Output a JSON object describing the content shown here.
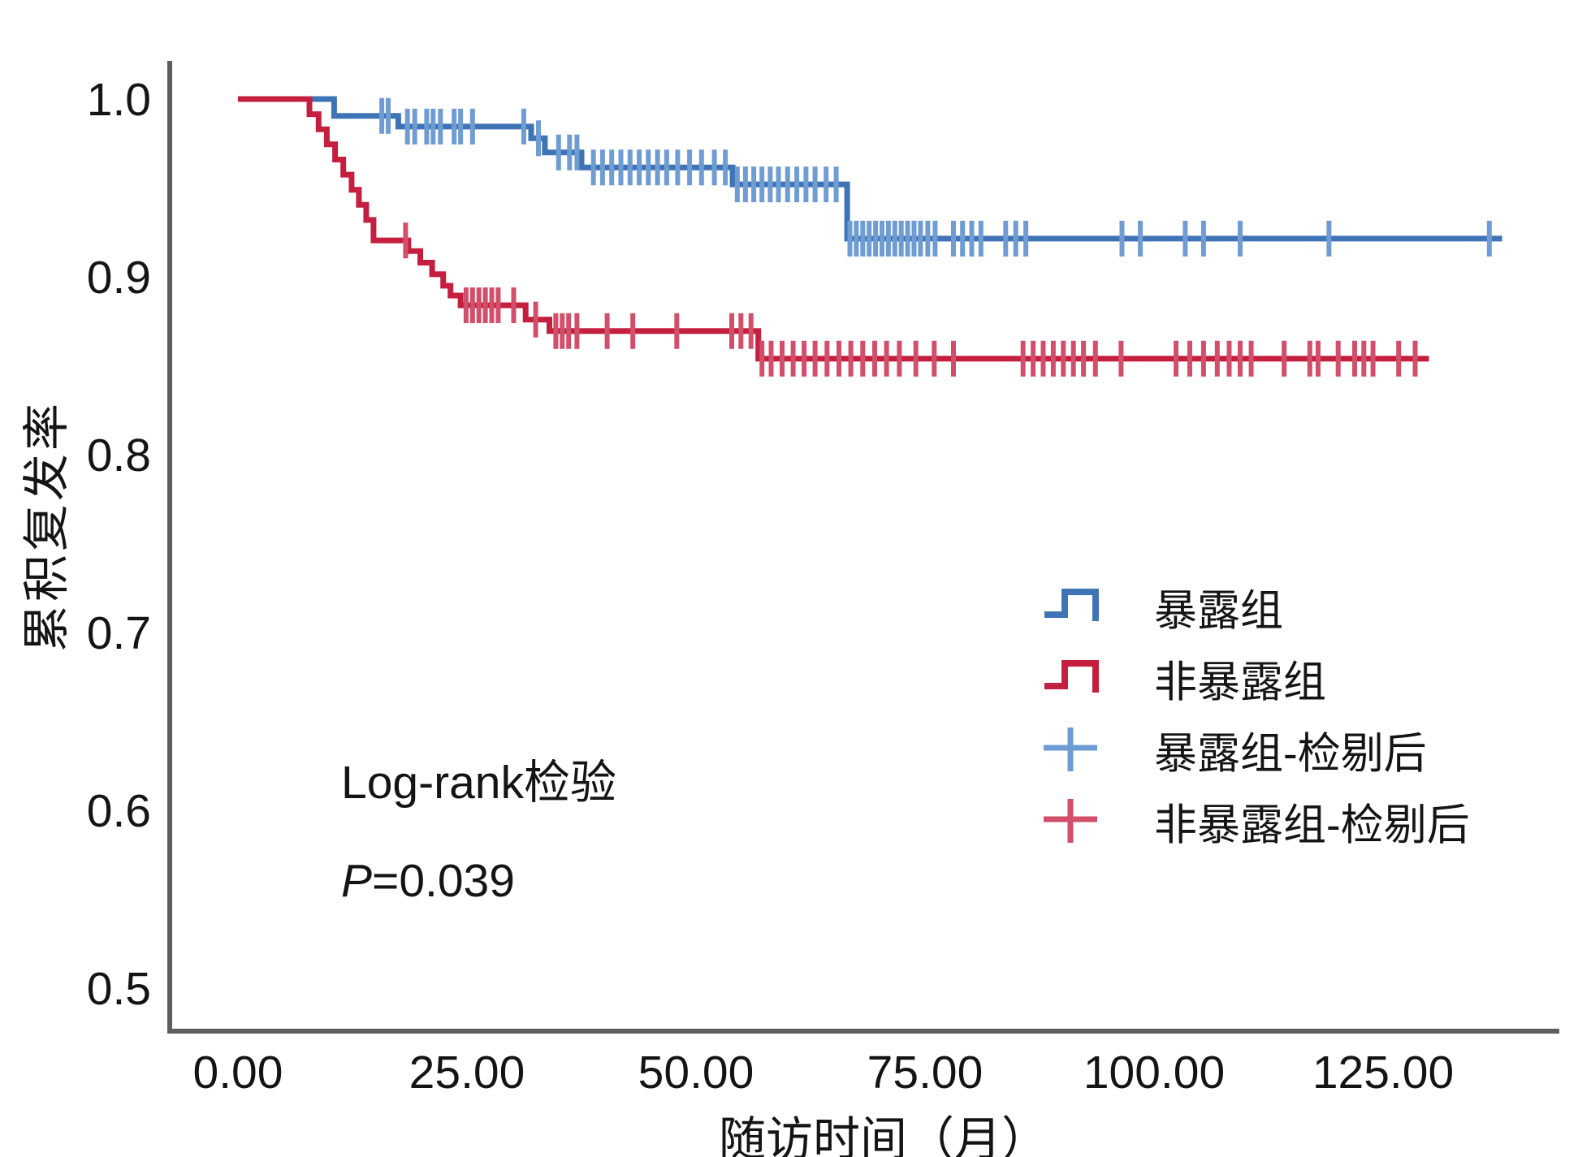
{
  "figure": {
    "background": "#ffffff",
    "text_color": "#141414",
    "axis_color": "#5e5e5e"
  },
  "y_axis": {
    "label": "累积复发率",
    "ticks": [
      "1.0",
      "0.9",
      "0.8",
      "0.7",
      "0.6",
      "0.5"
    ],
    "tick_values": [
      1.0,
      0.9,
      0.8,
      0.7,
      0.6,
      0.5
    ]
  },
  "x_axis": {
    "label": "随访时间（月）",
    "ticks": [
      "0.00",
      "25.00",
      "50.00",
      "75.00",
      "100.00",
      "125.00"
    ],
    "tick_values": [
      0,
      25,
      50,
      75,
      100,
      125
    ]
  },
  "annotations": {
    "line1": "Log-rank检验",
    "p_italic": "P",
    "p_rest": "=0.039"
  },
  "legend": [
    {
      "label": "暴露组",
      "type": "step-line",
      "color": "#3e74b6"
    },
    {
      "label": "非暴露组",
      "type": "step-line",
      "color": "#c51f3f"
    },
    {
      "label": "暴露组-检剔后",
      "type": "censor-cross",
      "color": "#6f9dd3"
    },
    {
      "label": "非暴露组-检剔后",
      "type": "censor-cross",
      "color": "#d24f6b"
    }
  ],
  "chart_data": {
    "type": "line",
    "subtype": "kaplan-meier-step",
    "title": "",
    "xlabel": "随访时间（月）",
    "ylabel": "累积复发率",
    "xlim": [
      0,
      146
    ],
    "ylim": [
      0.476,
      1.02
    ],
    "x_ticks": [
      0,
      25,
      50,
      75,
      100,
      125
    ],
    "y_ticks": [
      1.0,
      0.9,
      0.8,
      0.7,
      0.6,
      0.5
    ],
    "grid": false,
    "legend_position": "right-middle",
    "annotations": [
      "Log-rank检验",
      "P=0.039"
    ],
    "series": [
      {
        "name": "暴露组",
        "color": "#3e74b6",
        "censor_color": "#6f9dd3",
        "end_time": 138,
        "steps": [
          [
            0,
            1.0
          ],
          [
            10.5,
            0.9905
          ],
          [
            17.5,
            0.9845
          ],
          [
            32,
            0.978
          ],
          [
            33.5,
            0.97
          ],
          [
            37.5,
            0.9615
          ],
          [
            54,
            0.952
          ],
          [
            66.5,
            0.9215
          ]
        ],
        "censor_times": [
          15.7,
          16.4,
          18.5,
          19.3,
          20.6,
          21.3,
          22.1,
          23.6,
          24.3,
          25.6,
          31.2,
          32.8,
          35,
          36.2,
          37,
          38.8,
          39.8,
          40.8,
          41.8,
          42.8,
          43.8,
          44.8,
          45.8,
          46.8,
          48,
          49.3,
          50.6,
          52,
          53.2,
          54.5,
          55.4,
          56.3,
          57.2,
          58.1,
          59,
          60,
          61,
          62,
          63,
          64.2,
          65.3,
          66.8,
          67.5,
          68.2,
          68.9,
          69.6,
          70.3,
          71,
          71.7,
          72.4,
          73.1,
          73.8,
          74.5,
          75.3,
          76.1,
          78.1,
          79.1,
          80.1,
          81.1,
          83.8,
          84.9,
          86,
          96.5,
          98.5,
          103.4,
          105.4,
          109.4,
          119.1,
          136.6
        ]
      },
      {
        "name": "非暴露组",
        "color": "#c51f3f",
        "censor_color": "#d24f6b",
        "end_time": 130,
        "steps": [
          [
            0,
            1.0
          ],
          [
            7.8,
            0.9915
          ],
          [
            8.8,
            0.983
          ],
          [
            9.7,
            0.9745
          ],
          [
            10.6,
            0.966
          ],
          [
            11.5,
            0.9575
          ],
          [
            12.4,
            0.949
          ],
          [
            13.2,
            0.9405
          ],
          [
            14,
            0.932
          ],
          [
            14.8,
            0.9205
          ],
          [
            18.6,
            0.9145
          ],
          [
            19.9,
            0.908
          ],
          [
            21.2,
            0.9015
          ],
          [
            22.4,
            0.895
          ],
          [
            23.2,
            0.8895
          ],
          [
            24.3,
            0.884
          ],
          [
            31.4,
            0.876
          ],
          [
            34,
            0.8695
          ],
          [
            56.8,
            0.854
          ]
        ],
        "censor_times": [
          18.3,
          24.9,
          25.6,
          26.3,
          27,
          27.7,
          28.4,
          30.1,
          32.5,
          34.7,
          35.4,
          36.1,
          37,
          40.3,
          43.1,
          47.9,
          53.9,
          54.9,
          56,
          57.2,
          58.2,
          59.4,
          60.6,
          61.8,
          63,
          64.3,
          65.6,
          66.9,
          68.2,
          69.5,
          70.8,
          72.2,
          74,
          76,
          78.1,
          85.7,
          86.8,
          87.9,
          89,
          90.1,
          91.2,
          92.3,
          93.6,
          96.4,
          102.4,
          103.9,
          105.4,
          106.9,
          108.2,
          109.4,
          110.6,
          114.2,
          117,
          117.9,
          120.1,
          121.9,
          122.9,
          123.9,
          126.7,
          128.5
        ]
      }
    ]
  }
}
